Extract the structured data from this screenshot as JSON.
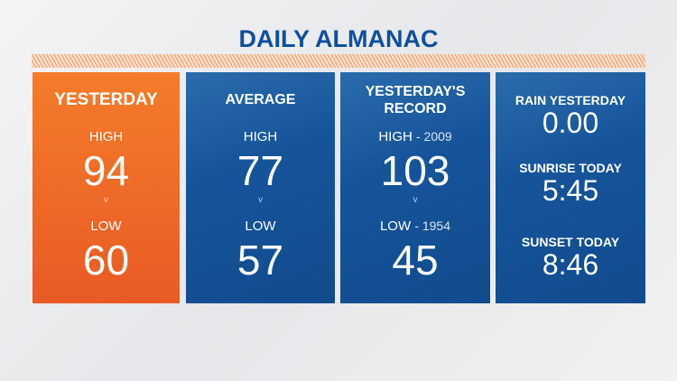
{
  "title": "DAILY ALMANAC",
  "yesterday": {
    "header": "YESTERDAY",
    "high_label": "HIGH",
    "high": "94",
    "separator": "v",
    "low_label": "LOW",
    "low": "60"
  },
  "average": {
    "header": "AVERAGE",
    "high_label": "HIGH",
    "high": "77",
    "separator": "v",
    "low_label": "LOW",
    "low": "57"
  },
  "record": {
    "header_line1": "YESTERDAY'S",
    "header_line2": "RECORD",
    "high_label": "HIGH",
    "high_year": "- 2009",
    "high": "103",
    "separator": "v",
    "low_label": "LOW",
    "low_year": "- 1954",
    "low": "45"
  },
  "misc": {
    "rain_label": "RAIN YESTERDAY",
    "rain": "0.00",
    "sunrise_label": "SUNRISE TODAY",
    "sunrise": "5:45",
    "sunset_label": "SUNSET TODAY",
    "sunset": "8:46"
  },
  "colors": {
    "orange": "#f47c2a",
    "blue": "#16549a",
    "title": "#0e4f9e"
  }
}
